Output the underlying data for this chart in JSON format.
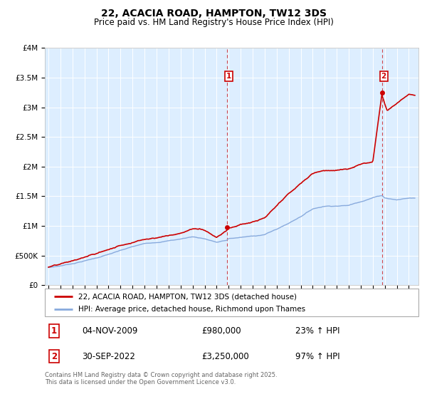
{
  "title": "22, ACACIA ROAD, HAMPTON, TW12 3DS",
  "subtitle": "Price paid vs. HM Land Registry's House Price Index (HPI)",
  "legend_line1": "22, ACACIA ROAD, HAMPTON, TW12 3DS (detached house)",
  "legend_line2": "HPI: Average price, detached house, Richmond upon Thames",
  "annotation1_date": "04-NOV-2009",
  "annotation1_price": "£980,000",
  "annotation1_hpi": "23% ↑ HPI",
  "annotation2_date": "30-SEP-2022",
  "annotation2_price": "£3,250,000",
  "annotation2_hpi": "97% ↑ HPI",
  "footnote": "Contains HM Land Registry data © Crown copyright and database right 2025.\nThis data is licensed under the Open Government Licence v3.0.",
  "ylim": [
    0,
    4000000
  ],
  "yticks": [
    0,
    500000,
    1000000,
    1500000,
    2000000,
    2500000,
    3000000,
    3500000,
    4000000
  ],
  "ytick_labels": [
    "£0",
    "£500K",
    "£1M",
    "£1.5M",
    "£2M",
    "£2.5M",
    "£3M",
    "£3.5M",
    "£4M"
  ],
  "price_color": "#cc0000",
  "hpi_color": "#88aadd",
  "background_color": "#ddeeff",
  "grid_color": "#ffffff",
  "vline_color": "#cc0000",
  "annotation_box_color": "#cc0000",
  "purchase1_year": 2009.84,
  "purchase1_price": 980000,
  "purchase2_year": 2022.75,
  "purchase2_price": 3250000,
  "hpi_control_years": [
    1995,
    1996,
    1997,
    1998,
    1999,
    2000,
    2001,
    2002,
    2003,
    2004,
    2005,
    2006,
    2007,
    2008,
    2009,
    2009.84,
    2010,
    2011,
    2012,
    2013,
    2014,
    2015,
    2016,
    2017,
    2018,
    2019,
    2020,
    2021,
    2022,
    2022.75,
    2023,
    2024,
    2025
  ],
  "hpi_control_vals": [
    300000,
    330000,
    370000,
    420000,
    470000,
    530000,
    590000,
    650000,
    700000,
    730000,
    760000,
    790000,
    830000,
    800000,
    740000,
    770000,
    800000,
    820000,
    840000,
    870000,
    960000,
    1060000,
    1180000,
    1310000,
    1360000,
    1370000,
    1380000,
    1450000,
    1520000,
    1560000,
    1520000,
    1490000,
    1520000
  ],
  "price_control_years": [
    1995,
    1996,
    1997,
    1998,
    1999,
    2000,
    2001,
    2002,
    2003,
    2004,
    2005,
    2006,
    2007,
    2008,
    2009,
    2009.84,
    2010,
    2011,
    2012,
    2013,
    2014,
    2015,
    2016,
    2017,
    2018,
    2019,
    2020,
    2021,
    2022,
    2022.75,
    2023,
    2023.2,
    2024,
    2025
  ],
  "price_control_vals": [
    305000,
    340000,
    390000,
    450000,
    510000,
    580000,
    650000,
    720000,
    780000,
    820000,
    860000,
    900000,
    980000,
    960000,
    850000,
    980000,
    1020000,
    1080000,
    1120000,
    1180000,
    1370000,
    1560000,
    1730000,
    1900000,
    1960000,
    1970000,
    1980000,
    2050000,
    2100000,
    3250000,
    3100000,
    2980000,
    3100000,
    3250000
  ]
}
